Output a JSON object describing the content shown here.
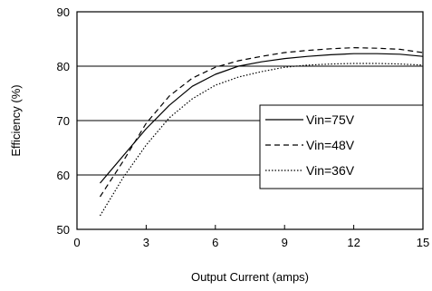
{
  "chart_data": {
    "type": "line",
    "xlabel": "Output Current (amps)",
    "ylabel": "Efficiency (%)",
    "xlim": [
      0,
      15
    ],
    "ylim": [
      50,
      90
    ],
    "x_ticks": [
      0,
      3,
      6,
      9,
      12,
      15
    ],
    "y_ticks": [
      50,
      60,
      70,
      80,
      90
    ],
    "grid": "horizontal",
    "legend_position": "center-right",
    "series": [
      {
        "name": "Vin=75V",
        "style": "solid",
        "x": [
          1,
          2,
          3,
          4,
          5,
          6,
          7,
          8,
          9,
          10,
          11,
          12,
          13,
          14,
          15
        ],
        "y": [
          58.5,
          63.5,
          68.5,
          72.8,
          76.3,
          78.5,
          80.0,
          80.8,
          81.4,
          81.8,
          82.1,
          82.3,
          82.3,
          82.2,
          81.8
        ]
      },
      {
        "name": "Vin=48V",
        "style": "dashed",
        "x": [
          1,
          2,
          3,
          4,
          5,
          6,
          7,
          8,
          9,
          10,
          11,
          12,
          13,
          14,
          15
        ],
        "y": [
          56.0,
          62.5,
          69.5,
          74.5,
          77.8,
          79.8,
          81.0,
          81.8,
          82.5,
          82.9,
          83.2,
          83.4,
          83.3,
          83.1,
          82.5
        ]
      },
      {
        "name": "Vin=36V",
        "style": "dotted",
        "x": [
          1,
          2,
          3,
          4,
          5,
          6,
          7,
          8,
          9,
          10,
          11,
          12,
          13,
          14,
          15
        ],
        "y": [
          52.5,
          59.5,
          65.5,
          70.5,
          74.0,
          76.5,
          78.0,
          79.0,
          79.8,
          80.2,
          80.4,
          80.5,
          80.5,
          80.4,
          80.2
        ]
      }
    ]
  }
}
